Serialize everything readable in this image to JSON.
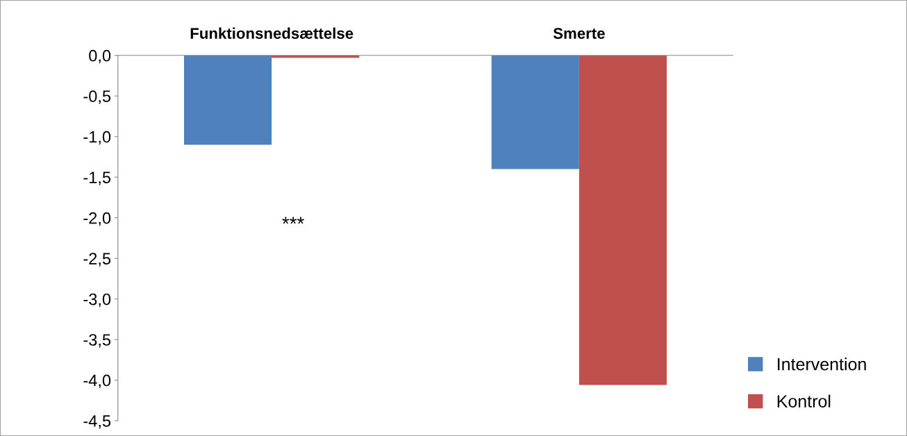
{
  "chart_data": {
    "type": "bar",
    "categories": [
      "Funktionsnedsættelse",
      "Smerte"
    ],
    "series": [
      {
        "name": "Intervention",
        "color": "#4f81bd",
        "values": [
          -1.1,
          -1.4
        ]
      },
      {
        "name": "Kontrol",
        "color": "#c0504d",
        "values": [
          -0.03,
          -4.06
        ]
      }
    ],
    "ylim": [
      -4.5,
      0
    ],
    "yticks": [
      {
        "value": 0,
        "label": "0,0"
      },
      {
        "value": -0.5,
        "label": "-0,5"
      },
      {
        "value": -1,
        "label": "-1,0"
      },
      {
        "value": -1.5,
        "label": "-1,5"
      },
      {
        "value": -2,
        "label": "-2,0"
      },
      {
        "value": -2.5,
        "label": "-2,5"
      },
      {
        "value": -3,
        "label": "-3,0"
      },
      {
        "value": -3.5,
        "label": "-3,5"
      },
      {
        "value": -4,
        "label": "-4,0"
      },
      {
        "value": -4.5,
        "label": "-4,5"
      }
    ],
    "annotations": [
      "***"
    ],
    "grid": false,
    "legend": "right"
  }
}
